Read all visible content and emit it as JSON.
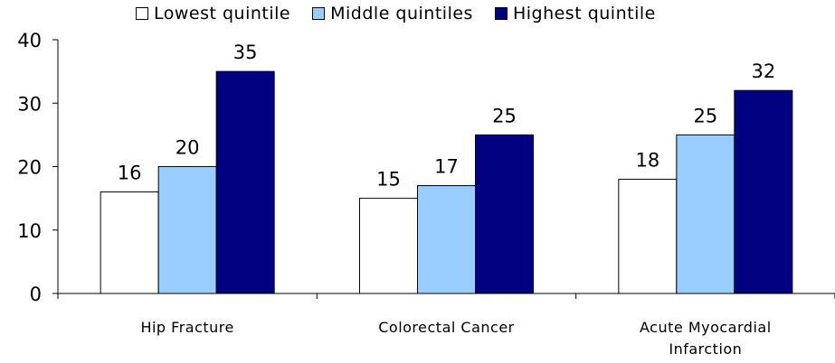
{
  "chart_data": {
    "type": "bar",
    "categories": [
      "Hip Fracture",
      "Colorectal Cancer",
      "Acute Myocardial Infarction"
    ],
    "category_lines": [
      [
        "Hip Fracture"
      ],
      [
        "Colorectal Cancer"
      ],
      [
        "Acute Myocardial",
        "Infarction"
      ]
    ],
    "series": [
      {
        "name": "Lowest quintile",
        "values": [
          16,
          15,
          18
        ],
        "color": "#FFFFFF"
      },
      {
        "name": "Middle quintiles",
        "values": [
          20,
          17,
          25
        ],
        "color": "#99CCFF"
      },
      {
        "name": "Highest quintile",
        "values": [
          35,
          25,
          32
        ],
        "color": "#000080"
      }
    ],
    "ylim": [
      0,
      40
    ],
    "yticks": [
      0,
      10,
      20,
      30,
      40
    ],
    "legend_position": "top",
    "grid": false,
    "xlabel": "",
    "ylabel": "",
    "title": ""
  }
}
